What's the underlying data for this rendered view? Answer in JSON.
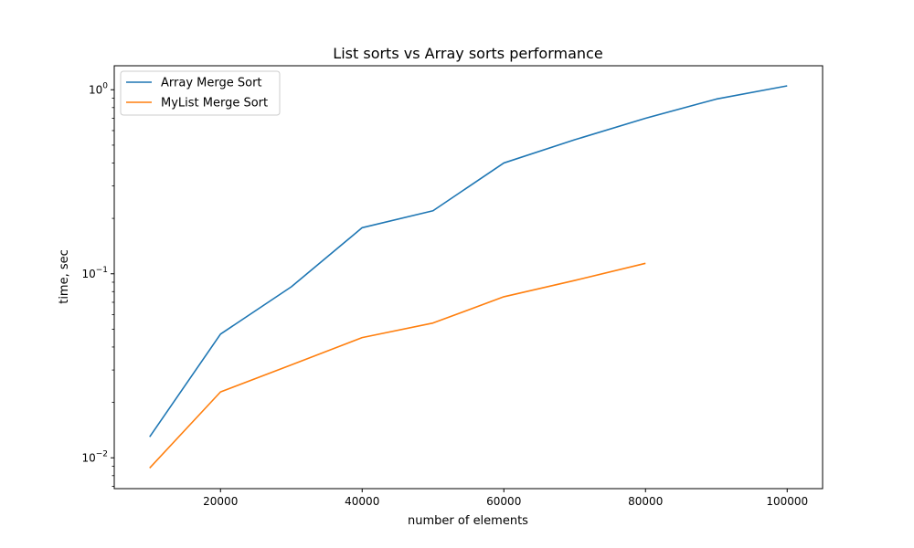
{
  "chart_data": {
    "type": "line",
    "title": "List sorts vs Array sorts performance",
    "xlabel": "number of elements",
    "ylabel": "time, sec",
    "yscale": "log",
    "xlim": [
      5000,
      105000
    ],
    "ylim": [
      0.0068,
      1.35
    ],
    "xticks": [
      20000,
      40000,
      60000,
      80000,
      100000
    ],
    "xtick_labels": [
      "20000",
      "40000",
      "60000",
      "80000",
      "100000"
    ],
    "yticks": [
      0.01,
      0.1,
      1
    ],
    "ytick_labels": [
      "10",
      "10",
      "10"
    ],
    "ytick_exponents": [
      "−2",
      "−1",
      "0"
    ],
    "grid": false,
    "legend_position": "top-left",
    "series": [
      {
        "name": "Array Merge Sort",
        "color": "#1f77b4",
        "x": [
          10000,
          20000,
          30000,
          40000,
          50000,
          60000,
          70000,
          80000,
          90000,
          100000
        ],
        "y": [
          0.013,
          0.047,
          0.085,
          0.178,
          0.22,
          0.4,
          0.535,
          0.7,
          0.89,
          1.05
        ]
      },
      {
        "name": "MyList Merge Sort",
        "color": "#ff7f0e",
        "x": [
          10000,
          20000,
          30000,
          40000,
          50000,
          60000,
          70000,
          80000
        ],
        "y": [
          0.0088,
          0.0228,
          0.032,
          0.045,
          0.054,
          0.075,
          0.092,
          0.114
        ]
      }
    ]
  }
}
